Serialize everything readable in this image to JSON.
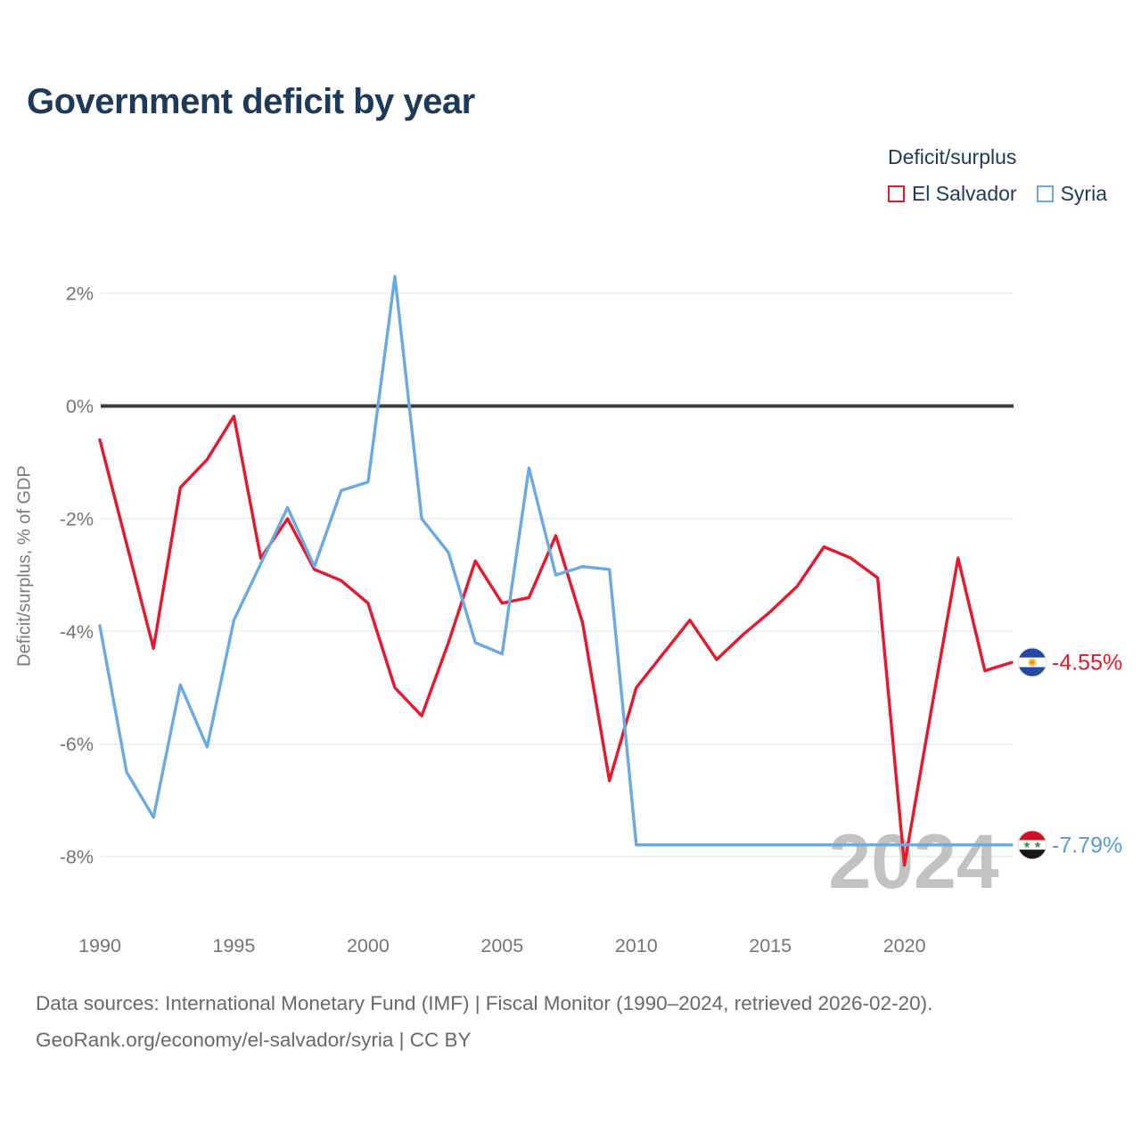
{
  "title": "Government deficit by year",
  "legend": {
    "title": "Deficit/surplus",
    "items": [
      {
        "label": "El Salvador",
        "color": "#e8182c"
      },
      {
        "label": "Syria",
        "color": "#6aaae4"
      }
    ]
  },
  "chart_data": {
    "type": "line",
    "title": "Government deficit by year",
    "xlabel": "",
    "ylabel": "Deficit/surplus, % of GDP",
    "x": [
      1990,
      1991,
      1992,
      1993,
      1994,
      1995,
      1996,
      1997,
      1998,
      1999,
      2000,
      2001,
      2002,
      2003,
      2004,
      2005,
      2006,
      2007,
      2008,
      2009,
      2010,
      2011,
      2012,
      2013,
      2014,
      2015,
      2016,
      2017,
      2018,
      2019,
      2020,
      2021,
      2022,
      2023,
      2024
    ],
    "series": [
      {
        "name": "El Salvador",
        "color": "#e8182c",
        "values": [
          -0.6,
          -2.45,
          -4.3,
          -1.45,
          -0.95,
          -0.18,
          -2.7,
          -2.0,
          -2.9,
          -3.1,
          -3.5,
          -5.0,
          -5.5,
          -4.2,
          -2.75,
          -3.5,
          -3.4,
          -2.3,
          -3.85,
          -6.65,
          -5.0,
          -4.4,
          -3.8,
          -4.5,
          -4.05,
          -3.65,
          -3.2,
          -2.5,
          -2.7,
          -3.05,
          -8.15,
          -5.4,
          -2.7,
          -4.7,
          -4.55
        ]
      },
      {
        "name": "Syria",
        "color": "#6aaae4",
        "values": [
          -3.9,
          -6.5,
          -7.3,
          -4.95,
          -6.05,
          -3.8,
          -2.8,
          -1.8,
          -2.85,
          -1.5,
          -1.35,
          2.3,
          -2.0,
          -2.6,
          -4.2,
          -4.4,
          -1.1,
          -3.0,
          -2.85,
          -2.9,
          -7.79,
          -7.79,
          -7.79,
          -7.79,
          -7.79,
          -7.79,
          -7.79,
          -7.79,
          -7.79,
          -7.79,
          -7.79,
          -7.79,
          -7.79,
          -7.79,
          -7.79
        ]
      }
    ],
    "xticks": [
      {
        "value": 1990,
        "label": "1990"
      },
      {
        "value": 1995,
        "label": "1995"
      },
      {
        "value": 2000,
        "label": "2000"
      },
      {
        "value": 2005,
        "label": "2005"
      },
      {
        "value": 2010,
        "label": "2010"
      },
      {
        "value": 2015,
        "label": "2015"
      },
      {
        "value": 2020,
        "label": "2020"
      }
    ],
    "yticks": [
      {
        "value": 2,
        "label": "2%"
      },
      {
        "value": 0,
        "label": "0%"
      },
      {
        "value": -2,
        "label": "-2%"
      },
      {
        "value": -4,
        "label": "-4%"
      },
      {
        "value": -6,
        "label": "-6%"
      },
      {
        "value": -8,
        "label": "-8%"
      }
    ],
    "xlim": [
      1990,
      2024
    ],
    "ylim": [
      -8.8,
      2.6
    ],
    "grid": "horizontal",
    "zero_line": true,
    "legend_position": "top-right"
  },
  "end_labels": [
    {
      "series": "El Salvador",
      "value_label": "-4.55%",
      "flag": "el-salvador-flag",
      "color": "#e8182c"
    },
    {
      "series": "Syria",
      "value_label": "-7.79%",
      "flag": "syria-flag",
      "color": "#5b9bd5"
    }
  ],
  "watermark": "2024",
  "footer": {
    "line1": "Data sources: International Monetary Fund (IMF) | Fiscal Monitor (1990–2024, retrieved 2026-02-20).",
    "line2": "GeoRank.org/economy/el-salvador/syria | CC BY"
  }
}
